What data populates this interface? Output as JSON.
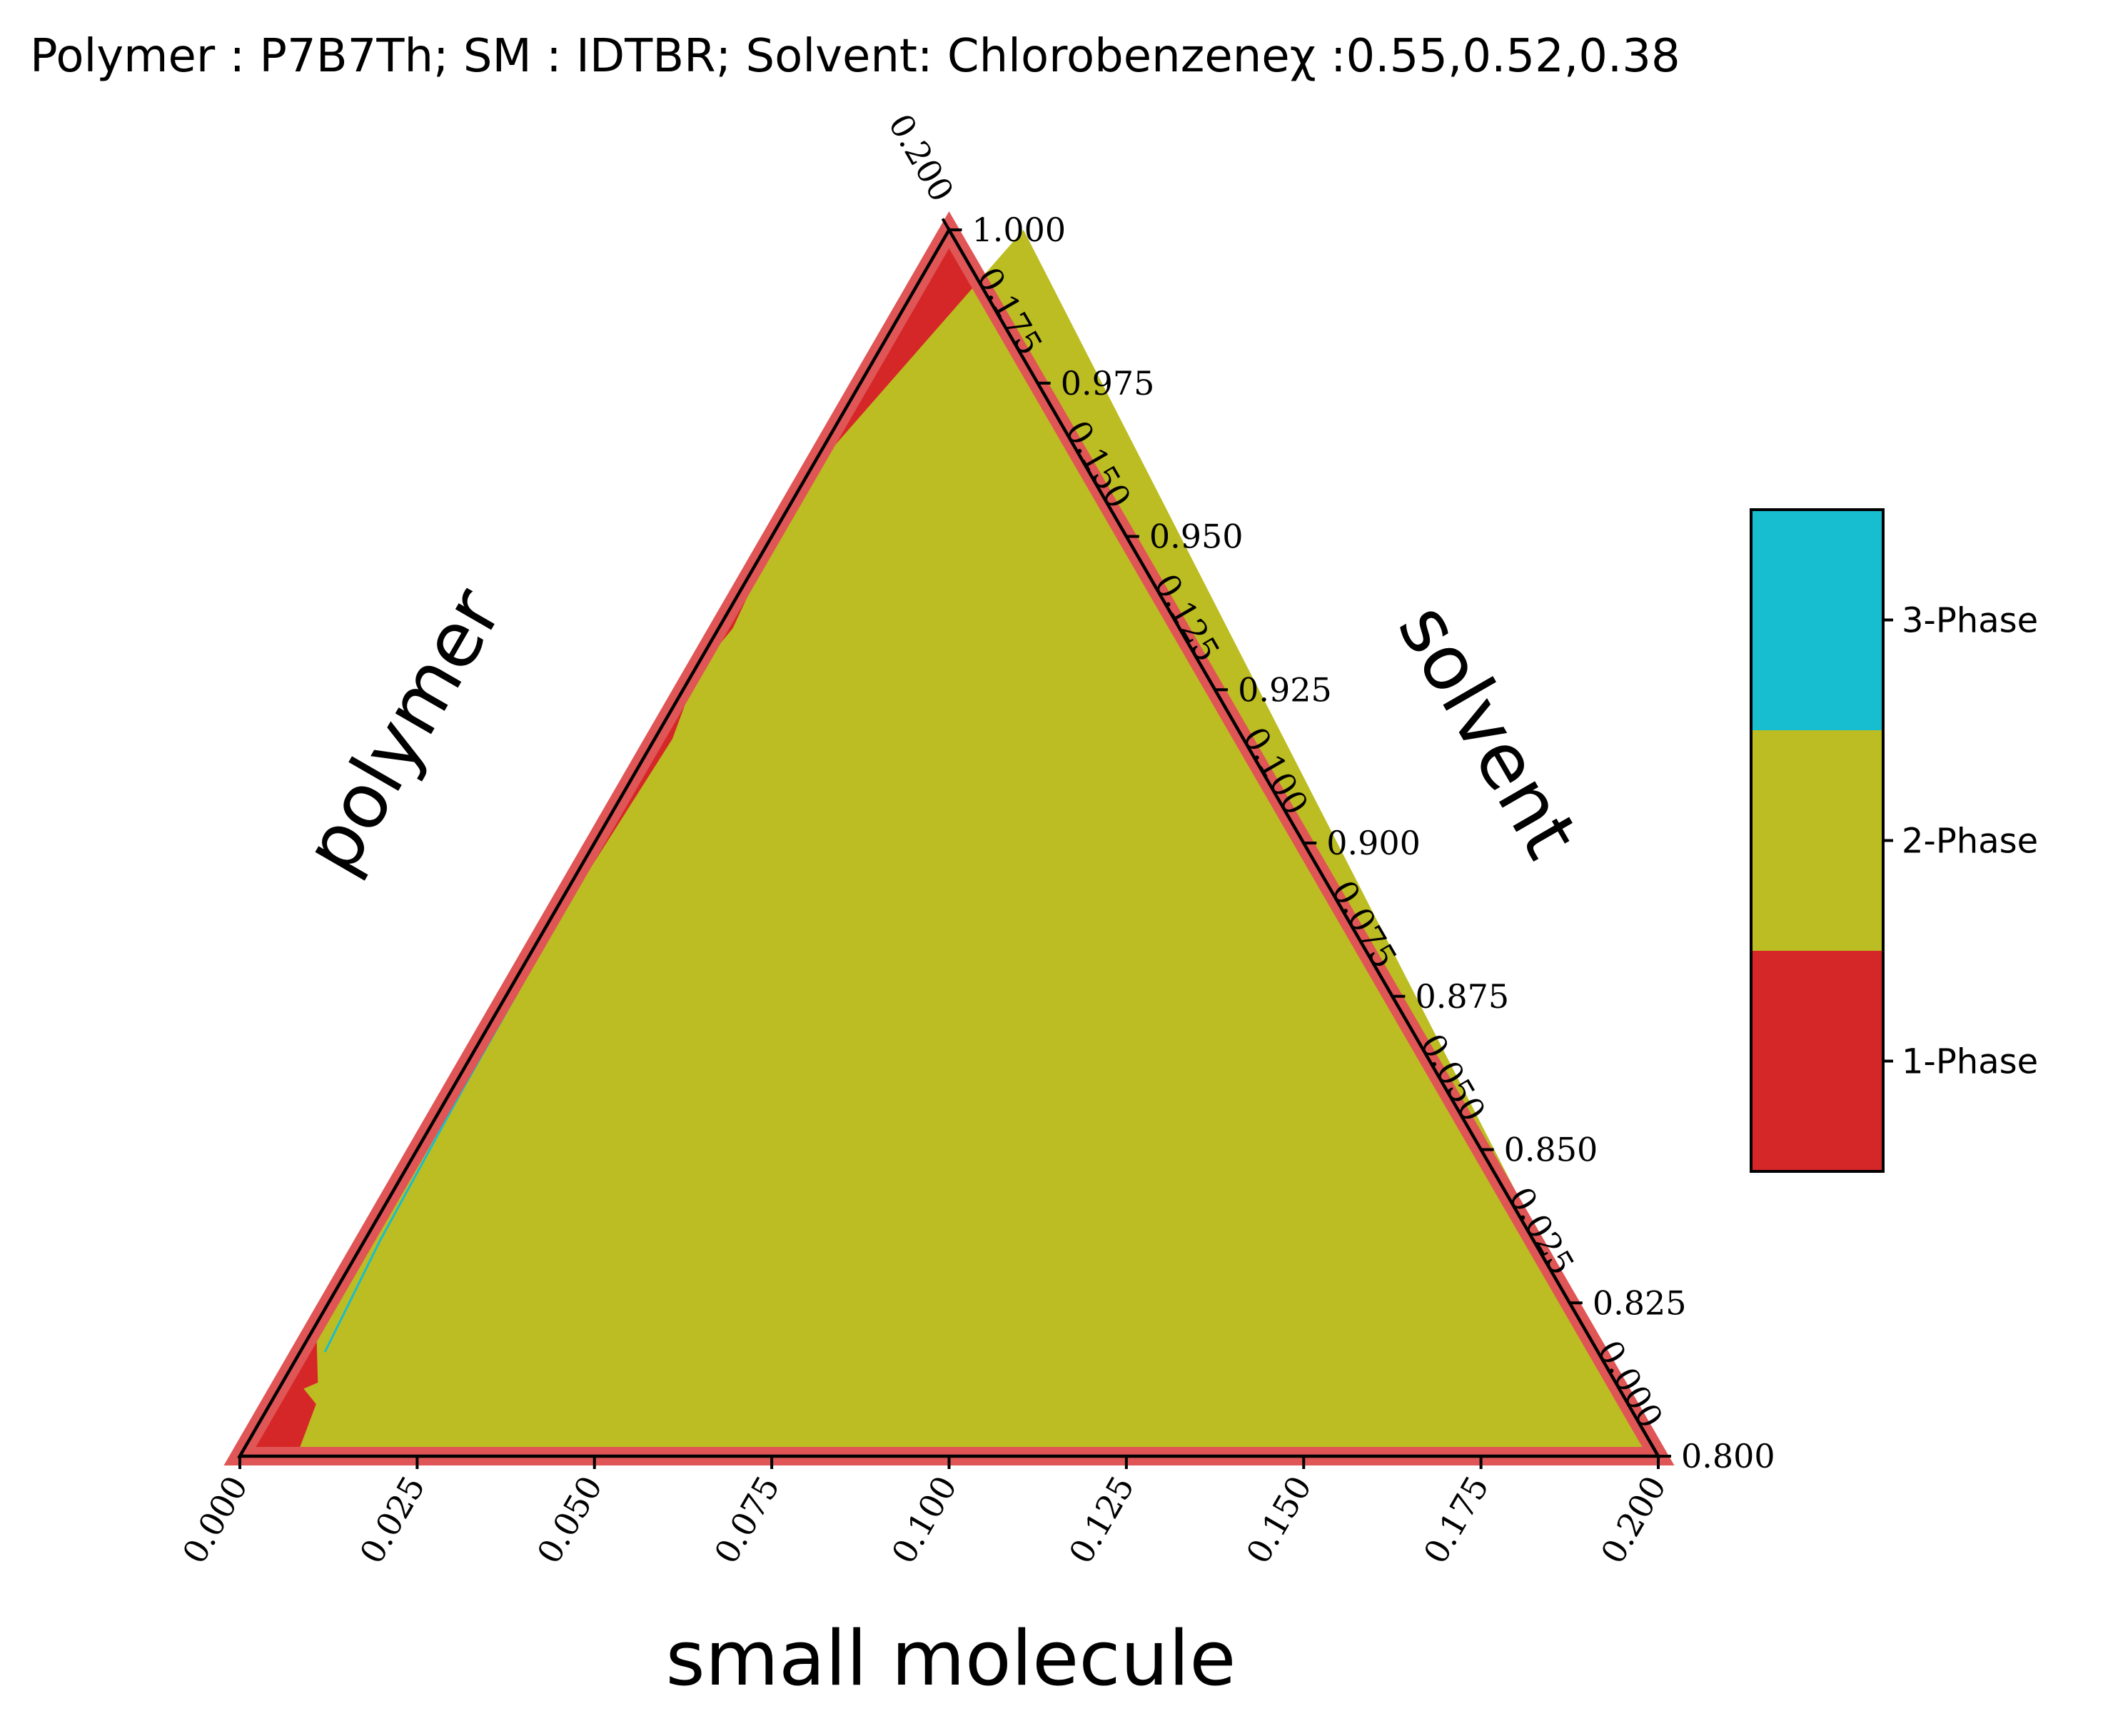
{
  "chart_data": {
    "type": "ternary-phase-diagram",
    "title": "Polymer : P7B7Th; SM : IDTBR; Solvent: Chlorobenzeneχ :0.55,0.52,0.38",
    "axes": {
      "small_molecule": {
        "label": "small molecule",
        "range": [
          0.0,
          0.2
        ],
        "ticks": [
          "0.000",
          "0.025",
          "0.050",
          "0.075",
          "0.100",
          "0.125",
          "0.150",
          "0.175",
          "0.200"
        ]
      },
      "polymer": {
        "label": "polymer",
        "range": [
          0.0,
          0.2
        ],
        "ticks": [
          "0.000",
          "0.025",
          "0.050",
          "0.075",
          "0.100",
          "0.125",
          "0.150",
          "0.175",
          "0.200"
        ]
      },
      "solvent": {
        "label": "solvent",
        "range": [
          0.8,
          1.0
        ],
        "ticks": [
          "1.000",
          "0.975",
          "0.950",
          "0.925",
          "0.900",
          "0.875",
          "0.850",
          "0.825",
          "0.800"
        ]
      }
    },
    "legend": {
      "placement": "right",
      "entries": [
        {
          "label": "3-Phase",
          "color": "#17becf"
        },
        {
          "label": "2-Phase",
          "color": "#bcbd22"
        },
        {
          "label": "1-Phase",
          "color": "#d62728"
        }
      ]
    },
    "regions": [
      {
        "phase": "1-Phase",
        "color": "#d62728",
        "polygon_sm_poly": [
          [
            0.0,
            0.2
          ],
          [
            0.2,
            0.0
          ],
          [
            0.0,
            0.0
          ]
        ]
      },
      {
        "phase": "2-Phase",
        "color": "#bcbd22",
        "polygon_sm_poly": [
          [
            0.0105,
            0.2
          ],
          [
            0.199,
            0.0
          ],
          [
            0.008,
            0.0
          ],
          [
            0.0065,
            0.0085
          ],
          [
            0.0035,
            0.011
          ],
          [
            0.005,
            0.012
          ],
          [
            0.0008,
            0.02
          ],
          [
            0.0009,
            0.03
          ],
          [
            0.0015,
            0.05
          ],
          [
            0.0012,
            0.09
          ],
          [
            0.0025,
            0.117
          ],
          [
            0.0005,
            0.128
          ],
          [
            0.002,
            0.135
          ],
          [
            0.0005,
            0.15
          ],
          [
            0.0015,
            0.165
          ]
        ]
      },
      {
        "phase": "3-Phase",
        "color": "#17becf",
        "polyline_sm_poly": [
          [
            0.0012,
            0.089
          ],
          [
            0.0015,
            0.06
          ],
          [
            0.0022,
            0.035
          ],
          [
            0.0035,
            0.017
          ]
        ]
      }
    ],
    "boundary_color": "#e05555"
  }
}
